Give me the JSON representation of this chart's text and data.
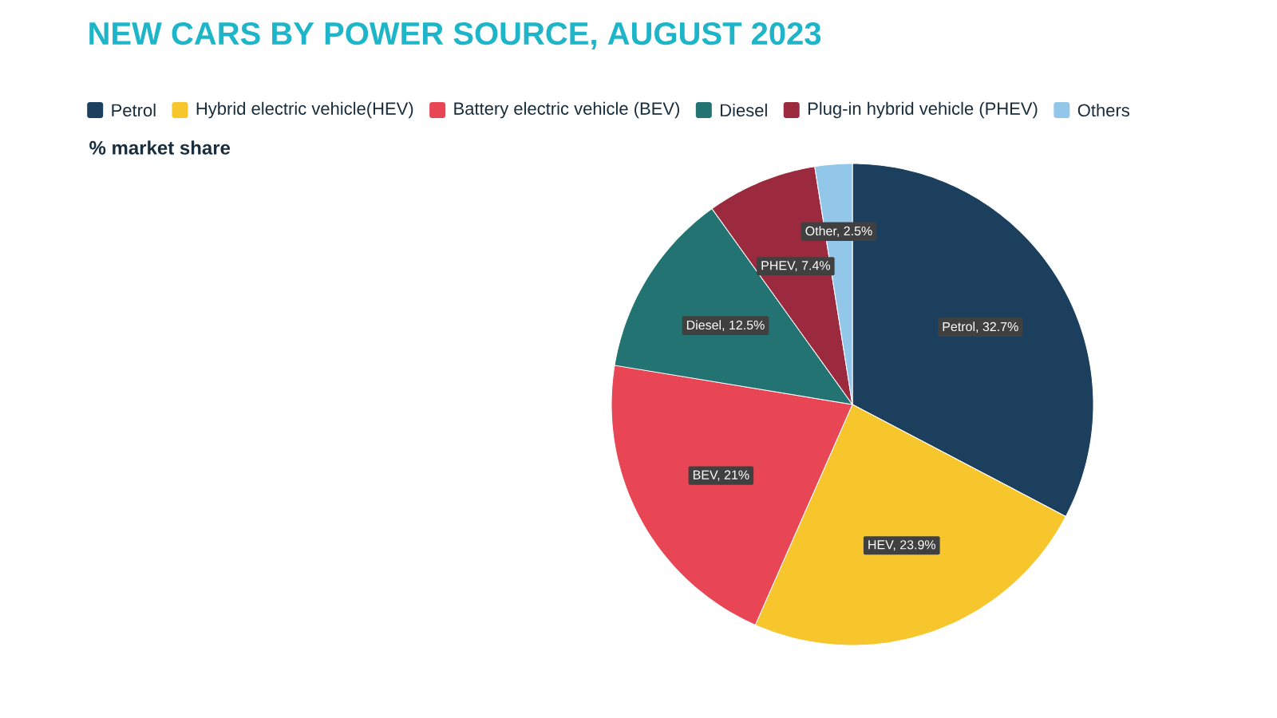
{
  "chart_data": {
    "type": "pie",
    "title": "NEW CARS BY POWER SOURCE, AUGUST 2023",
    "subtitle": "% market share",
    "categories": [
      "Petrol",
      "Hybrid electric vehicle(HEV)",
      "Battery electric vehicle (BEV)",
      "Diesel",
      "Plug-in hybrid vehicle (PHEV)",
      "Others"
    ],
    "values": [
      32.7,
      23.9,
      21,
      12.5,
      7.4,
      2.5
    ],
    "value_labels": [
      "Petrol, 32.7%",
      "HEV, 23.9%",
      "BEV, 21%",
      "Diesel, 12.5%",
      "PHEV, 7.4%",
      "Other, 2.5%"
    ],
    "colors": [
      "#1d3f5e",
      "#f7c52c",
      "#e84655",
      "#237373",
      "#9b2a3f",
      "#93c7ea"
    ],
    "legend": "top"
  }
}
